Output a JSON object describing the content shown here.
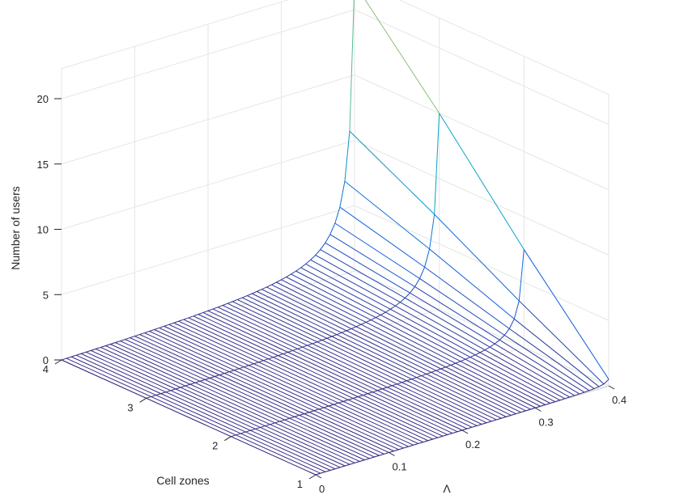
{
  "chart_data": {
    "type": "surface",
    "title": "",
    "zlabel": "Number of users",
    "ylabel": "Cell zones",
    "xlabel": "Λ",
    "xlim": [
      0,
      0.4
    ],
    "ylim": [
      1,
      4
    ],
    "zlim": [
      0,
      20
    ],
    "grid": true,
    "x_ticks": [
      "0",
      "0.1",
      "0.2",
      "0.3",
      "0.4"
    ],
    "y_ticks": [
      "1",
      "2",
      "3",
      "4"
    ],
    "z_ticks": [
      "0",
      "5",
      "10",
      "15",
      "20"
    ],
    "zones": [
      1,
      2,
      3,
      4
    ],
    "lambda_step": 0.00667,
    "series": [
      {
        "zone": 4,
        "peak": 22,
        "shape": "Λ/(Λmax−Λ) growth"
      },
      {
        "zone": 3,
        "peak": 15,
        "shape": "Λ/(Λmax−Λ) growth"
      },
      {
        "zone": 2,
        "peak": 7.5,
        "shape": "Λ/(Λmax−Λ) growth"
      },
      {
        "zone": 1,
        "peak": 0.5,
        "shape": "Λ/(Λmax−Λ) growth"
      }
    ],
    "colormap": [
      "#352a87",
      "#0f5cdd",
      "#1481d6",
      "#06a4ca",
      "#2eb7a4",
      "#87bf77",
      "#d1bb59"
    ]
  }
}
